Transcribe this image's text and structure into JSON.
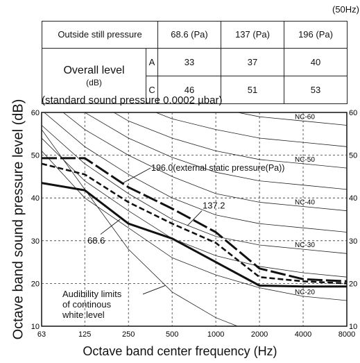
{
  "frequency_note": "(50Hz)",
  "table": {
    "header": [
      "Outside still pressure",
      "68.6 (Pa)",
      "137 (Pa)",
      "196 (Pa)"
    ],
    "overall_label": "Overall level",
    "overall_unit": "(dB)",
    "rows": [
      {
        "weight": "A",
        "values": [
          "33",
          "37",
          "40"
        ]
      },
      {
        "weight": "C",
        "values": [
          "46",
          "51",
          "53"
        ]
      }
    ]
  },
  "chart_data": {
    "type": "line",
    "title": "(standard sound pressure 0.0002 µbar)",
    "xlabel": "Octave band center frequency (Hz)",
    "ylabel": "Octave band sound pressure level (dB)",
    "x_scale": "log2",
    "x_ticks": [
      "63",
      "125",
      "250",
      "500",
      "1000",
      "2000",
      "4000",
      "8000"
    ],
    "y_ticks": [
      10,
      20,
      30,
      40,
      50,
      60
    ],
    "ylim": [
      10,
      60
    ],
    "grid": true,
    "series": [
      {
        "name": "68.6",
        "x": [
          63,
          125,
          250,
          500,
          1000,
          2000,
          4000,
          8000
        ],
        "y": [
          43.5,
          41.8,
          34,
          30.5,
          25,
          19.5,
          19.3,
          19.3
        ],
        "style": "thick-solid"
      },
      {
        "name": "137.2",
        "x": [
          63,
          125,
          250,
          500,
          1000,
          2000,
          4000,
          8000
        ],
        "y": [
          48,
          45.5,
          39,
          34,
          29.5,
          21.5,
          20.5,
          20
        ],
        "style": "thick-dashed"
      },
      {
        "name": "196.0(external static pressure(Pa))",
        "x": [
          63,
          125,
          250,
          500,
          1000,
          2000,
          4000,
          8000
        ],
        "y": [
          49.3,
          49.3,
          42.5,
          37.5,
          32,
          23.5,
          21,
          20.5
        ],
        "style": "thick-longdash"
      }
    ],
    "nc_curves": [
      {
        "name": "NC-60",
        "x": [
          63,
          125,
          250,
          500,
          1000,
          2000,
          4000,
          8000
        ],
        "y": [
          77,
          71,
          67,
          63,
          61,
          59,
          58,
          57
        ]
      },
      {
        "name": "NC-50",
        "x": [
          63,
          125,
          250,
          500,
          1000,
          2000,
          4000,
          8000
        ],
        "y": [
          71,
          64,
          58,
          54,
          51,
          49,
          48,
          47
        ]
      },
      {
        "name": "NC-40",
        "x": [
          63,
          125,
          250,
          500,
          1000,
          2000,
          4000,
          8000
        ],
        "y": [
          64,
          56,
          50,
          45,
          41,
          39,
          38,
          37
        ]
      },
      {
        "name": "NC-30",
        "x": [
          63,
          125,
          250,
          500,
          1000,
          2000,
          4000,
          8000
        ],
        "y": [
          57,
          48,
          41,
          35,
          31,
          29,
          28,
          27
        ]
      },
      {
        "name": "NC-20",
        "x": [
          63,
          125,
          250,
          500,
          1000,
          2000,
          4000,
          8000
        ],
        "y": [
          51,
          40,
          33,
          26,
          22,
          19,
          17,
          16
        ]
      }
    ],
    "extra_nc_curves": [
      {
        "x": [
          63,
          125,
          250,
          500,
          1000,
          2000,
          4000,
          8000
        ],
        "y": [
          80,
          74,
          70,
          67,
          65,
          63,
          62,
          61
        ]
      },
      {
        "x": [
          63,
          125,
          250,
          500,
          1000,
          2000,
          4000,
          8000
        ],
        "y": [
          74,
          67.5,
          62.5,
          58.5,
          56,
          54,
          53,
          52
        ]
      },
      {
        "x": [
          63,
          125,
          250,
          500,
          1000,
          2000,
          4000,
          8000
        ],
        "y": [
          67.5,
          60,
          54,
          49.5,
          46,
          44,
          43,
          42
        ]
      },
      {
        "x": [
          63,
          125,
          250,
          500,
          1000,
          2000,
          4000,
          8000
        ],
        "y": [
          60.5,
          52,
          45.5,
          40,
          36,
          34,
          33,
          32
        ]
      },
      {
        "x": [
          63,
          125,
          250,
          500,
          1000,
          2000,
          4000,
          8000
        ],
        "y": [
          54,
          44,
          37,
          30.5,
          26.5,
          24,
          22.5,
          21.5
        ]
      }
    ],
    "audibility_curve": {
      "x": [
        63,
        125,
        250,
        500,
        1000,
        2000
      ],
      "y": [
        56,
        42,
        28,
        18,
        12,
        8
      ]
    },
    "annotations": {
      "audibility": [
        "Audibility limits",
        "of continous",
        "white level"
      ]
    }
  }
}
